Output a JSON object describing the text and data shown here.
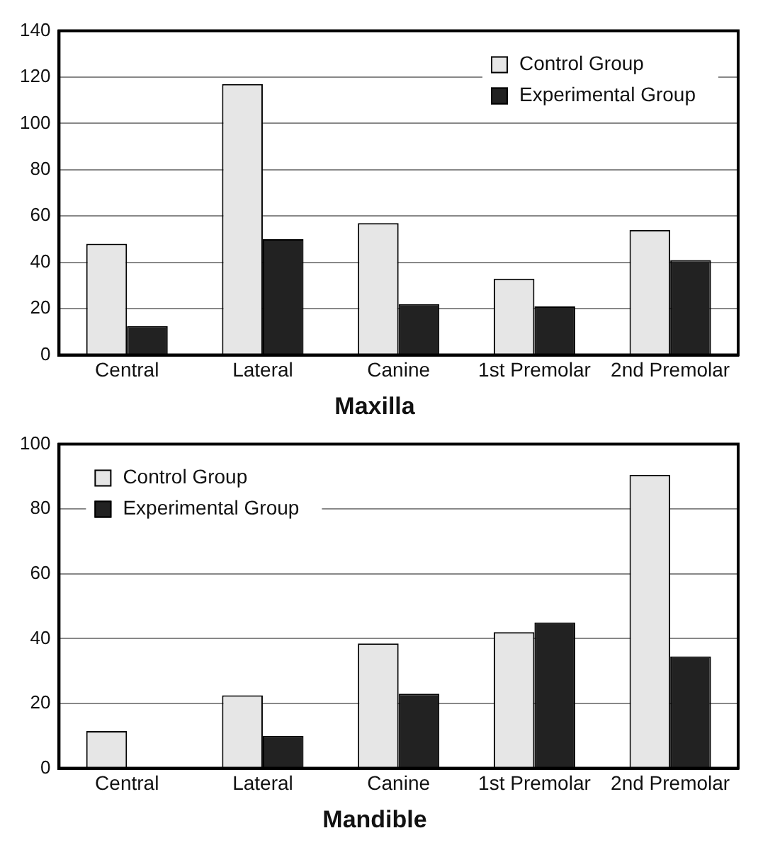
{
  "chart_data": [
    {
      "type": "bar",
      "title": "Maxilla",
      "categories": [
        "Central",
        "Lateral",
        "Canine",
        "1st Premolar",
        "2nd Premolar"
      ],
      "series": [
        {
          "name": "Control Group",
          "color": "#e6e6e6",
          "values": [
            48,
            117,
            57,
            33,
            54
          ]
        },
        {
          "name": "Experimental Group",
          "color": "#222222",
          "values": [
            12.5,
            50,
            22,
            21,
            41
          ]
        }
      ],
      "ylim": [
        0,
        140
      ],
      "yticks": [
        0,
        20,
        40,
        60,
        80,
        100,
        120,
        140
      ],
      "grid": "y",
      "legend": "top right"
    },
    {
      "type": "bar",
      "title": "Mandible",
      "categories": [
        "Central",
        "Lateral",
        "Canine",
        "1st Premolar",
        "2nd Premolar"
      ],
      "series": [
        {
          "name": "Control Group",
          "color": "#e6e6e6",
          "values": [
            11.5,
            22.5,
            38.5,
            42,
            90.5
          ]
        },
        {
          "name": "Experimental Group",
          "color": "#222222",
          "values": [
            0,
            10,
            23,
            45,
            34.5
          ]
        }
      ],
      "ylim": [
        0,
        100
      ],
      "yticks": [
        0,
        20,
        40,
        60,
        80,
        100
      ],
      "grid": "y",
      "legend": "top left"
    }
  ]
}
